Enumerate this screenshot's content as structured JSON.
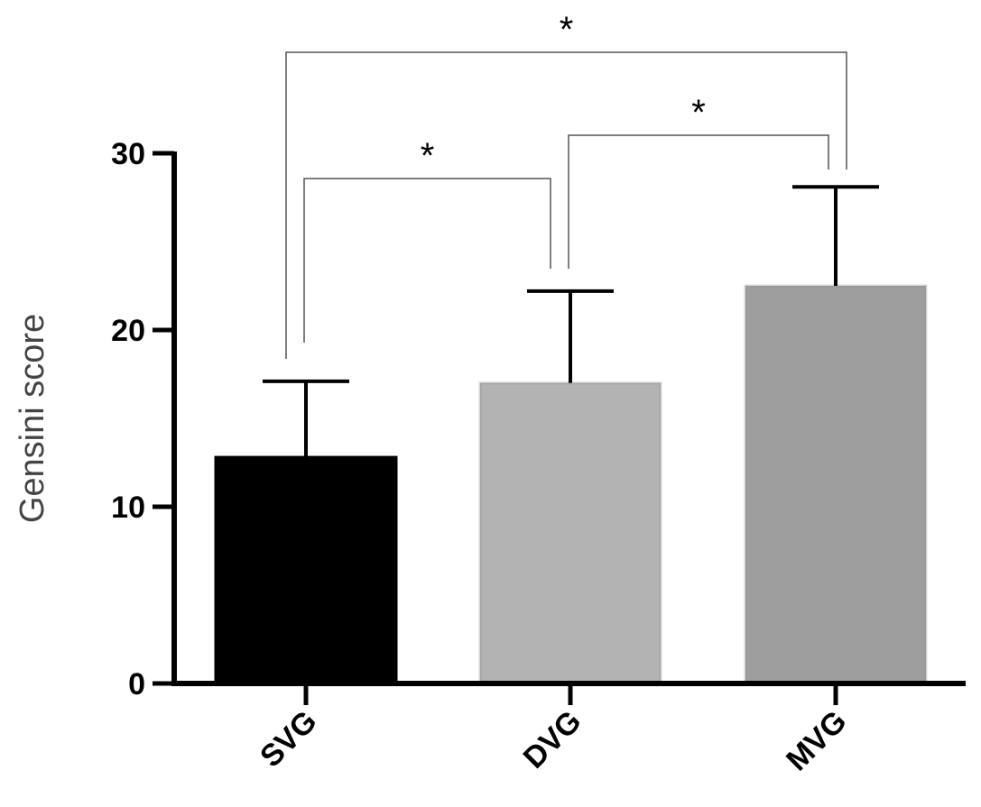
{
  "chart_data": {
    "type": "bar",
    "title": "",
    "xlabel": "",
    "ylabel": "Gensini score",
    "ylim": [
      0,
      30
    ],
    "yticks": [
      0,
      10,
      20,
      30
    ],
    "grid": false,
    "categories": [
      "SVG",
      "DVG",
      "MVG"
    ],
    "values": [
      12.8,
      17.0,
      22.5
    ],
    "errors": [
      4.3,
      5.2,
      5.6
    ],
    "colors": [
      "#000000",
      "#b3b3b3",
      "#9e9e9e"
    ],
    "significance": [
      {
        "from": 0,
        "to": 1,
        "label": "*"
      },
      {
        "from": 1,
        "to": 2,
        "label": "*"
      },
      {
        "from": 0,
        "to": 2,
        "label": "*"
      }
    ]
  }
}
